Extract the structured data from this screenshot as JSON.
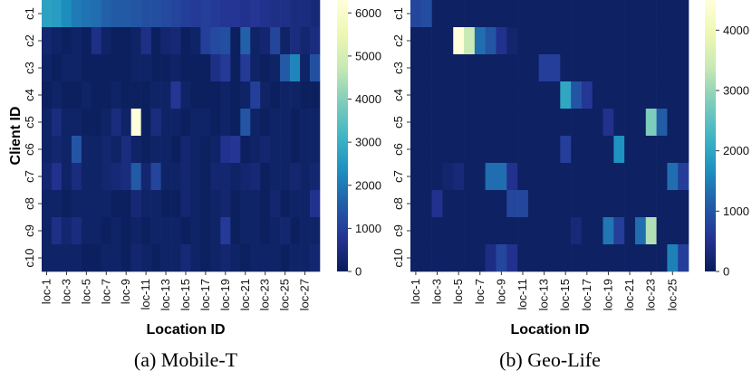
{
  "chart_data": [
    {
      "type": "heatmap",
      "caption": "(a) Mobile-T",
      "xlabel": "Location ID",
      "ylabel": "Client ID",
      "rows": [
        "c1",
        "c2",
        "c3",
        "c4",
        "c5",
        "c6",
        "c7",
        "c8",
        "c9",
        "c10"
      ],
      "columns": [
        "loc-1",
        "loc-2",
        "loc-3",
        "loc-4",
        "loc-5",
        "loc-6",
        "loc-7",
        "loc-8",
        "loc-9",
        "loc-10",
        "loc-11",
        "loc-12",
        "loc-13",
        "loc-14",
        "loc-15",
        "loc-16",
        "loc-17",
        "loc-18",
        "loc-19",
        "loc-20",
        "loc-21",
        "loc-22",
        "loc-23",
        "loc-24",
        "loc-25",
        "loc-26",
        "loc-27",
        "loc-28"
      ],
      "xtick_labels": [
        "loc-1",
        "loc-3",
        "loc-5",
        "loc-7",
        "loc-9",
        "loc-11",
        "loc-13",
        "loc-15",
        "loc-17",
        "loc-19",
        "loc-21",
        "loc-23",
        "loc-25",
        "loc-27"
      ],
      "colorbar": {
        "min": 0,
        "max": 6300,
        "ticks": [
          0,
          1000,
          2000,
          3000,
          4000,
          5000,
          6000
        ]
      },
      "values": [
        [
          2700,
          2600,
          2300,
          2000,
          1900,
          1800,
          1600,
          1500,
          1500,
          1400,
          1300,
          1300,
          1200,
          1100,
          1000,
          900,
          1000,
          900,
          800,
          800,
          700,
          800,
          700,
          600,
          600,
          500,
          500,
          400
        ],
        [
          300,
          200,
          100,
          200,
          100,
          600,
          200,
          100,
          100,
          200,
          600,
          100,
          300,
          400,
          100,
          200,
          1000,
          1200,
          1300,
          100,
          1600,
          200,
          300,
          1100,
          200,
          500,
          300,
          500
        ],
        [
          200,
          100,
          200,
          200,
          100,
          100,
          100,
          100,
          100,
          200,
          200,
          100,
          100,
          200,
          100,
          100,
          100,
          600,
          900,
          100,
          900,
          200,
          100,
          200,
          1500,
          2200,
          200,
          1300
        ],
        [
          100,
          200,
          100,
          100,
          200,
          100,
          100,
          200,
          100,
          100,
          100,
          200,
          200,
          800,
          200,
          100,
          100,
          100,
          200,
          100,
          200,
          1000,
          200,
          100,
          200,
          200,
          100,
          100
        ],
        [
          200,
          500,
          200,
          200,
          100,
          100,
          200,
          500,
          200,
          6300,
          100,
          500,
          200,
          200,
          100,
          200,
          200,
          100,
          200,
          100,
          1400,
          200,
          100,
          200,
          200,
          100,
          200,
          200
        ],
        [
          200,
          300,
          200,
          1400,
          200,
          200,
          300,
          200,
          500,
          200,
          100,
          200,
          200,
          100,
          300,
          200,
          100,
          200,
          700,
          800,
          100,
          200,
          300,
          200,
          200,
          100,
          200,
          200
        ],
        [
          300,
          700,
          200,
          500,
          200,
          200,
          300,
          400,
          500,
          1500,
          300,
          1100,
          200,
          200,
          300,
          200,
          100,
          300,
          300,
          200,
          300,
          400,
          100,
          200,
          200,
          300,
          200,
          300
        ],
        [
          200,
          200,
          100,
          200,
          200,
          200,
          200,
          100,
          100,
          400,
          200,
          200,
          100,
          100,
          300,
          200,
          100,
          200,
          300,
          100,
          200,
          200,
          100,
          300,
          100,
          200,
          200,
          700
        ],
        [
          200,
          600,
          300,
          500,
          200,
          200,
          100,
          200,
          100,
          200,
          100,
          200,
          200,
          200,
          100,
          200,
          100,
          200,
          900,
          100,
          200,
          200,
          100,
          200,
          300,
          100,
          200,
          200
        ],
        [
          200,
          200,
          200,
          200,
          100,
          100,
          200,
          200,
          100,
          300,
          200,
          100,
          200,
          200,
          400,
          200,
          100,
          200,
          300,
          200,
          100,
          200,
          200,
          200,
          100,
          200,
          200,
          300
        ]
      ]
    },
    {
      "type": "heatmap",
      "caption": "(b) Geo-Life",
      "xlabel": "Location ID",
      "ylabel": "",
      "rows": [
        "c1",
        "c2",
        "c3",
        "c4",
        "c5",
        "c6",
        "c7",
        "c8",
        "c9",
        "c10"
      ],
      "columns": [
        "loc-1",
        "loc-2",
        "loc-3",
        "loc-4",
        "loc-5",
        "loc-6",
        "loc-7",
        "loc-8",
        "loc-9",
        "loc-10",
        "loc-11",
        "loc-12",
        "loc-13",
        "loc-14",
        "loc-15",
        "loc-16",
        "loc-17",
        "loc-18",
        "loc-19",
        "loc-20",
        "loc-21",
        "loc-22",
        "loc-23",
        "loc-24",
        "loc-25",
        "loc-26"
      ],
      "xtick_labels": [
        "loc-1",
        "loc-3",
        "loc-5",
        "loc-7",
        "loc-9",
        "loc-11",
        "loc-13",
        "loc-15",
        "loc-17",
        "loc-19",
        "loc-21",
        "loc-23",
        "loc-25"
      ],
      "colorbar": {
        "min": 0,
        "max": 4500,
        "ticks": [
          0,
          1000,
          2000,
          3000,
          4000
        ]
      },
      "values": [
        [
          800,
          900,
          100,
          100,
          100,
          100,
          100,
          100,
          100,
          100,
          100,
          100,
          100,
          100,
          100,
          100,
          100,
          100,
          100,
          100,
          100,
          100,
          100,
          100,
          100,
          100
        ],
        [
          100,
          100,
          100,
          100,
          4500,
          3400,
          1300,
          1000,
          500,
          200,
          100,
          100,
          100,
          100,
          100,
          100,
          100,
          100,
          100,
          100,
          100,
          100,
          100,
          100,
          100,
          100
        ],
        [
          100,
          100,
          100,
          100,
          100,
          100,
          100,
          100,
          100,
          100,
          100,
          100,
          700,
          700,
          100,
          100,
          100,
          100,
          100,
          100,
          100,
          100,
          100,
          100,
          100,
          100
        ],
        [
          100,
          100,
          100,
          100,
          100,
          100,
          100,
          100,
          100,
          100,
          100,
          100,
          100,
          100,
          2000,
          1000,
          600,
          100,
          100,
          100,
          100,
          100,
          100,
          100,
          100,
          100
        ],
        [
          100,
          100,
          100,
          100,
          100,
          100,
          100,
          100,
          100,
          100,
          100,
          100,
          100,
          100,
          100,
          100,
          100,
          100,
          500,
          100,
          100,
          100,
          2800,
          1100,
          100,
          100
        ],
        [
          100,
          100,
          100,
          100,
          100,
          100,
          100,
          100,
          100,
          100,
          100,
          100,
          100,
          100,
          700,
          100,
          100,
          100,
          100,
          1700,
          100,
          100,
          100,
          100,
          100,
          100
        ],
        [
          100,
          100,
          100,
          200,
          300,
          100,
          100,
          1300,
          1300,
          500,
          100,
          100,
          100,
          100,
          100,
          100,
          100,
          100,
          100,
          100,
          100,
          100,
          100,
          100,
          1300,
          700
        ],
        [
          100,
          100,
          500,
          100,
          100,
          100,
          100,
          100,
          100,
          800,
          800,
          100,
          100,
          100,
          100,
          100,
          100,
          100,
          100,
          100,
          100,
          100,
          100,
          100,
          100,
          100
        ],
        [
          100,
          100,
          100,
          100,
          100,
          100,
          100,
          100,
          100,
          100,
          100,
          100,
          100,
          100,
          100,
          300,
          100,
          100,
          1400,
          700,
          100,
          1300,
          3200,
          100,
          100,
          100
        ],
        [
          100,
          100,
          100,
          100,
          100,
          100,
          100,
          400,
          800,
          500,
          100,
          100,
          100,
          100,
          100,
          100,
          100,
          100,
          100,
          100,
          100,
          100,
          100,
          100,
          1500,
          700
        ]
      ]
    }
  ]
}
